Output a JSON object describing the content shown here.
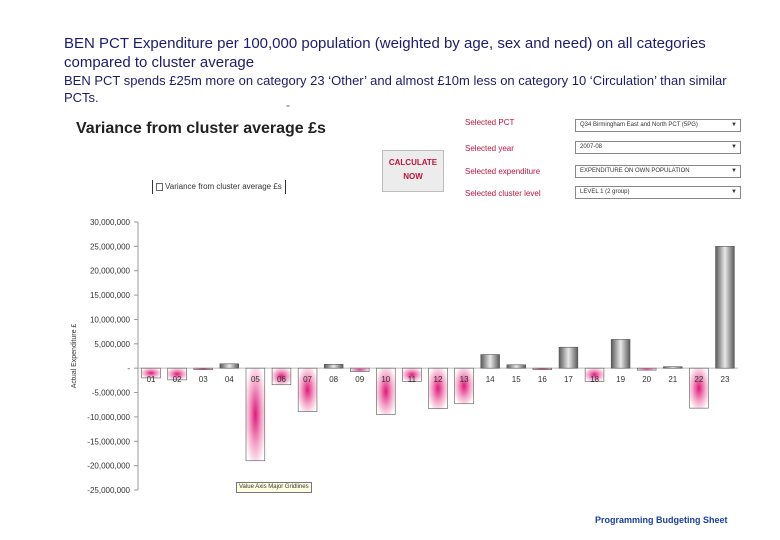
{
  "heading": "BEN PCT Expenditure per 100,000 population (weighted by age, sex and need) on all categories compared to cluster average",
  "subheading": "BEN PCT spends £25m more on category 23 ‘Other’ and almost £10m less on category 10 ‘Circulation’ than similar PCTs.",
  "dash": "-",
  "controls": {
    "calculate_label_1": "CALCULATE",
    "calculate_label_2": "NOW",
    "selected_pct_label": "Selected PCT",
    "selected_pct_value": "Q34 Birmingham East and North PCT (5PG)",
    "selected_year_label": "Selected year",
    "selected_year_value": "2007-08",
    "selected_expenditure_label": "Selected expenditure",
    "selected_expenditure_value": "EXPENDITURE ON OWN POPULATION",
    "selected_cluster_label": "Selected cluster level",
    "selected_cluster_value": "LEVEL 1 (2 group)"
  },
  "tooltip": "Value Axis Major Gridlines",
  "footer": "Programming Budgeting Sheet",
  "colors": {
    "heading": "#1c1c6e",
    "control_label": "#c0143c",
    "positive_bar": "#6e6e6e",
    "negative_bar": "#e0187a",
    "footer": "#1a3ea8"
  },
  "chart_data": {
    "type": "bar",
    "title": "Variance from cluster average £s",
    "legend": [
      "Variance from cluster average £s"
    ],
    "ylabel": "Actual Expenditure £",
    "xlabel": "",
    "ylim": [
      -25000000,
      30000000
    ],
    "yticks": [
      30000000,
      25000000,
      20000000,
      15000000,
      10000000,
      5000000,
      0,
      -5000000,
      -10000000,
      -15000000,
      -20000000,
      -25000000
    ],
    "ytick_labels": [
      "30,000,000",
      "25,000,000",
      "20,000,000",
      "15,000,000",
      "10,000,000",
      "5,000,000",
      "-",
      "-5,000,000",
      "-10,000,000",
      "-15,000,000",
      "-20,000,000",
      "-25,000,000"
    ],
    "categories": [
      "01",
      "02",
      "03",
      "04",
      "05",
      "06",
      "07",
      "08",
      "09",
      "10",
      "11",
      "12",
      "13",
      "14",
      "15",
      "16",
      "17",
      "18",
      "19",
      "20",
      "21",
      "22",
      "23"
    ],
    "values": [
      -2000000,
      -2400000,
      -200000,
      900000,
      -19000000,
      -3400000,
      -8900000,
      800000,
      -700000,
      -9500000,
      -2700000,
      -8300000,
      -7300000,
      2800000,
      700000,
      -300000,
      4300000,
      -2700000,
      5900000,
      -400000,
      300000,
      -8200000,
      25000000
    ]
  }
}
